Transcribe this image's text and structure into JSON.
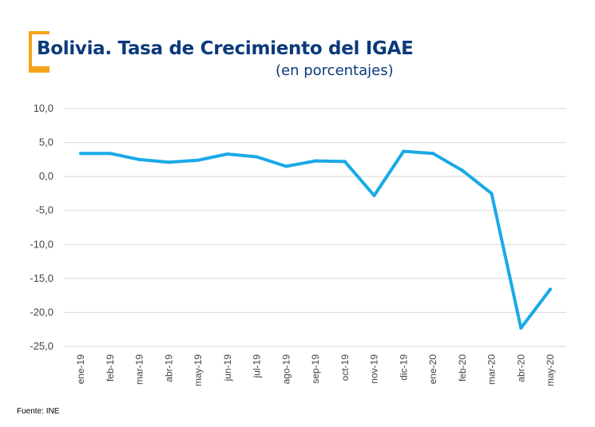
{
  "header": {
    "title": "Bolivia. Tasa de Crecimiento del IGAE",
    "subtitle": "(en porcentajes)"
  },
  "footer": {
    "source": "Fuente: INE"
  },
  "colors": {
    "title": "#0b3a7a",
    "accent": "#f5a31a",
    "line": "#1aa9e6",
    "grid": "#d9d9d9"
  },
  "chart_data": {
    "type": "line",
    "title": "Bolivia. Tasa de Crecimiento del IGAE",
    "subtitle": "(en porcentajes)",
    "xlabel": "",
    "ylabel": "",
    "ylim": [
      -25,
      10
    ],
    "yticks": [
      10,
      5,
      0,
      -5,
      -10,
      -15,
      -20,
      -25
    ],
    "ytick_labels": [
      "10,0",
      "5,0",
      "0,0",
      "-5,0",
      "-10,0",
      "-15,0",
      "-20,0",
      "-25,0"
    ],
    "grid": true,
    "categories": [
      "ene-19",
      "feb-19",
      "mar-19",
      "abr-19",
      "may-19",
      "jun-19",
      "jul-19",
      "ago-19",
      "sep-19",
      "oct-19",
      "nov-19",
      "dic-19",
      "ene-20",
      "feb-20",
      "mar-20",
      "abr-20",
      "may-20"
    ],
    "series": [
      {
        "values": [
          3.4,
          3.4,
          2.5,
          2.1,
          2.4,
          3.3,
          2.9,
          1.5,
          2.3,
          2.2,
          -2.8,
          3.7,
          3.4,
          0.9,
          -2.5,
          -22.3,
          -16.6
        ]
      }
    ]
  }
}
